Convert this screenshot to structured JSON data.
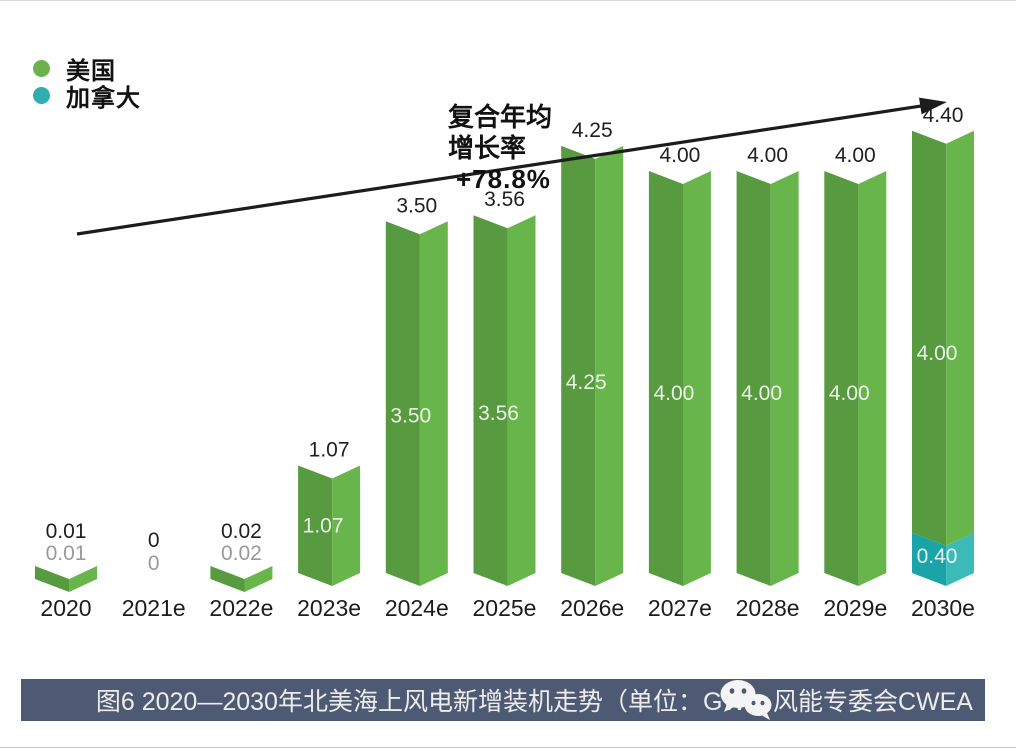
{
  "legend": {
    "items": [
      {
        "label": "美国",
        "color": "#6cb24c"
      },
      {
        "label": "加拿大",
        "color": "#2fadb0"
      }
    ]
  },
  "annotation": {
    "line1": "复合年均",
    "line2": "增长率",
    "line3": "+78.8%"
  },
  "caption": {
    "text": "图6 2020—2030年北美海上风电新增装机走势（单位：GW）",
    "watermark": "风能专委会CWEA",
    "bg": "#4e5a73"
  },
  "chart_data": {
    "type": "bar",
    "stacked": true,
    "unit": "GW",
    "title": "图6 2020—2030年北美海上风电新增装机走势（单位：GW）",
    "categories": [
      "2020",
      "2021e",
      "2022e",
      "2023e",
      "2024e",
      "2025e",
      "2026e",
      "2027e",
      "2028e",
      "2029e",
      "2030e"
    ],
    "series": [
      {
        "name": "美国",
        "color_dark": "#579a40",
        "color_light": "#68b54b",
        "values": [
          0.01,
          0,
          0.02,
          1.07,
          3.5,
          3.56,
          4.25,
          4.0,
          4.0,
          4.0,
          4.0
        ],
        "labels": [
          "0.01",
          "0",
          "0.02",
          "1.07",
          "3.50",
          "3.56",
          "4.25",
          "4.00",
          "4.00",
          "4.00",
          "4.00"
        ]
      },
      {
        "name": "加拿大",
        "color_dark": "#1ba4a8",
        "color_light": "#3cbab8",
        "values": [
          0,
          0,
          0,
          0,
          0,
          0,
          0,
          0,
          0,
          0,
          0.4
        ],
        "labels": [
          "",
          "",
          "",
          "",
          "",
          "",
          "",
          "",
          "",
          "",
          "0.40"
        ]
      }
    ],
    "stack_bottom_to_top": [
      "加拿大",
      "美国"
    ],
    "total_labels": [
      "0.01",
      "0",
      "0.02",
      "1.07",
      "3.50",
      "3.56",
      "4.25",
      "4.00",
      "4.00",
      "4.00",
      "4.40"
    ],
    "cagr": "+78.8%",
    "trend_arrow": true,
    "ylim": [
      0,
      4.6
    ],
    "grid": false,
    "legend_position": "top-left"
  }
}
